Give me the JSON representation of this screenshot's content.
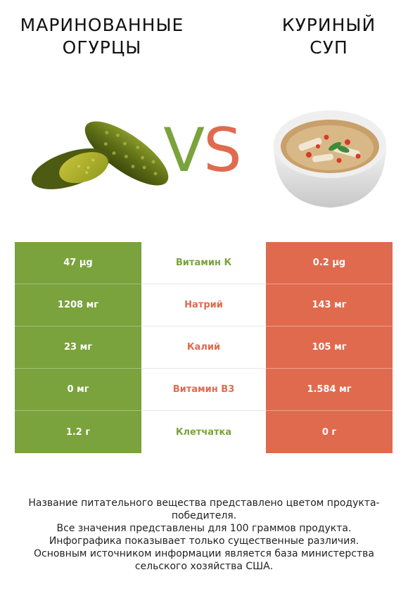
{
  "left_food": {
    "title": "МАРИНОВАННЫЕ\nОГУРЦЫ",
    "color": "#7aa23d"
  },
  "right_food": {
    "title": "КУРИНЫЙ\nСУП",
    "color": "#e06a4e"
  },
  "vs": {
    "v": "V",
    "s": "S"
  },
  "rows": [
    {
      "left": "47 µg",
      "nutrient": "Витамин К",
      "right": "0.2 µg",
      "winner": "left"
    },
    {
      "left": "1208 мг",
      "nutrient": "Натрий",
      "right": "143 мг",
      "winner": "right"
    },
    {
      "left": "23 мг",
      "nutrient": "Калий",
      "right": "105 мг",
      "winner": "right"
    },
    {
      "left": "0 мг",
      "nutrient": "Витамин B3",
      "right": "1.584 мг",
      "winner": "right"
    },
    {
      "left": "1.2 г",
      "nutrient": "Клетчатка",
      "right": "0 г",
      "winner": "left"
    }
  ],
  "footer": {
    "line1": "Название питательного вещества представлено цветом продукта-победителя.",
    "line2": "Все значения представлены для 100 граммов продукта.",
    "line3": "Инфографика показывает только существенные различия.",
    "line4": "Основным источником информации является база министерства сельского хозяйства США."
  }
}
